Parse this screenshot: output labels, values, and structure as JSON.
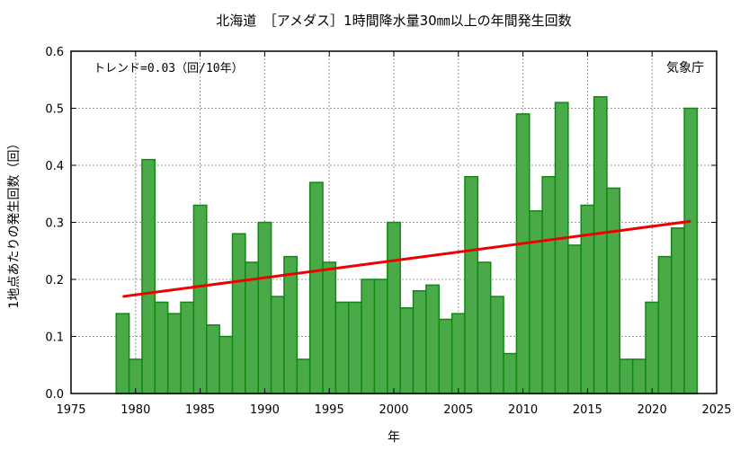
{
  "chart_data": {
    "type": "bar",
    "title": "北海道　［アメダス］1時間降水量30㎜以上の年間発生回数",
    "xlabel": "年",
    "ylabel": "1地点あたりの発生回数（回）",
    "xlim": [
      1975,
      2025
    ],
    "ylim": [
      0,
      0.6
    ],
    "xticks": [
      1975,
      1980,
      1985,
      1990,
      1995,
      2000,
      2005,
      2010,
      2015,
      2020,
      2025
    ],
    "yticks": [
      "0.0",
      "0.1",
      "0.2",
      "0.3",
      "0.4",
      "0.5",
      "0.6"
    ],
    "grid": true,
    "x": [
      1979,
      1980,
      1981,
      1982,
      1983,
      1984,
      1985,
      1986,
      1987,
      1988,
      1989,
      1990,
      1991,
      1992,
      1993,
      1994,
      1995,
      1996,
      1997,
      1998,
      1999,
      2000,
      2001,
      2002,
      2003,
      2004,
      2005,
      2006,
      2007,
      2008,
      2009,
      2010,
      2011,
      2012,
      2013,
      2014,
      2015,
      2016,
      2017,
      2018,
      2019,
      2020,
      2021,
      2022,
      2023
    ],
    "values": [
      0.14,
      0.06,
      0.41,
      0.16,
      0.14,
      0.16,
      0.33,
      0.12,
      0.1,
      0.28,
      0.23,
      0.3,
      0.17,
      0.24,
      0.06,
      0.37,
      0.23,
      0.16,
      0.16,
      0.2,
      0.2,
      0.3,
      0.15,
      0.18,
      0.19,
      0.13,
      0.14,
      0.38,
      0.23,
      0.17,
      0.07,
      0.49,
      0.32,
      0.38,
      0.51,
      0.26,
      0.33,
      0.52,
      0.36,
      0.06,
      0.06,
      0.16,
      0.24,
      0.29,
      0.5
    ],
    "trend": {
      "x": [
        1979,
        2023
      ],
      "y": [
        0.17,
        0.302
      ],
      "color": "#ee0000"
    },
    "bar_fill": "#4aaa4a",
    "bar_stroke": "#118811",
    "annotation": "トレンド=0.03（回/10年）",
    "source": "気象庁"
  }
}
